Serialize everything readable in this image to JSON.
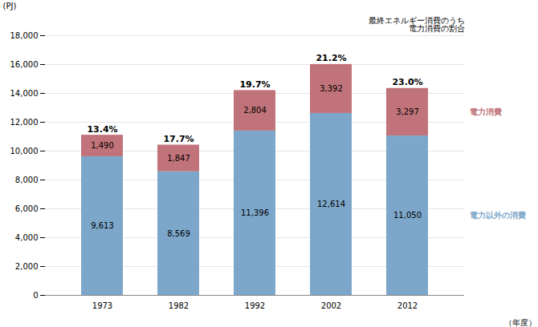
{
  "chart_data": {
    "type": "bar",
    "stacked": true,
    "categories": [
      "1973",
      "1982",
      "1992",
      "2002",
      "2012"
    ],
    "series": [
      {
        "name": "電力以外の消費",
        "color": "#7da7ca",
        "values": [
          9613,
          8569,
          11396,
          12614,
          11050
        ],
        "value_labels": [
          "9,613",
          "8,569",
          "11,396",
          "12,614",
          "11,050"
        ]
      },
      {
        "name": "電力消費",
        "color": "#c0737a",
        "values": [
          1490,
          1847,
          2804,
          3392,
          3297
        ],
        "value_labels": [
          "1,490",
          "1,847",
          "2,804",
          "3,392",
          "3,297"
        ]
      }
    ],
    "data_labels": true,
    "ylim": [
      0,
      18000
    ],
    "yticks": [
      0,
      {
        "value": 2000,
        "label": "2,000"
      },
      {
        "value": 4000,
        "label": "4,000"
      },
      {
        "value": 6000,
        "label": "6,000"
      },
      {
        "value": 8000,
        "label": "8,000"
      },
      {
        "value": 10000,
        "label": "10,000"
      },
      {
        "value": 12000,
        "label": "12,000"
      },
      {
        "value": 14000,
        "label": "14,000"
      },
      {
        "value": 16000,
        "label": "16,000"
      },
      {
        "value": 18000,
        "label": "18,000"
      }
    ],
    "ylabel": "(PJ)",
    "xlabel": "（年度）",
    "grid": true,
    "percentage_labels": [
      "13.4%",
      "17.7%",
      "19.7%",
      "21.2%",
      "23.0%"
    ],
    "annotation": "最終エネルギー消費のうち\n電力消費の割合"
  }
}
